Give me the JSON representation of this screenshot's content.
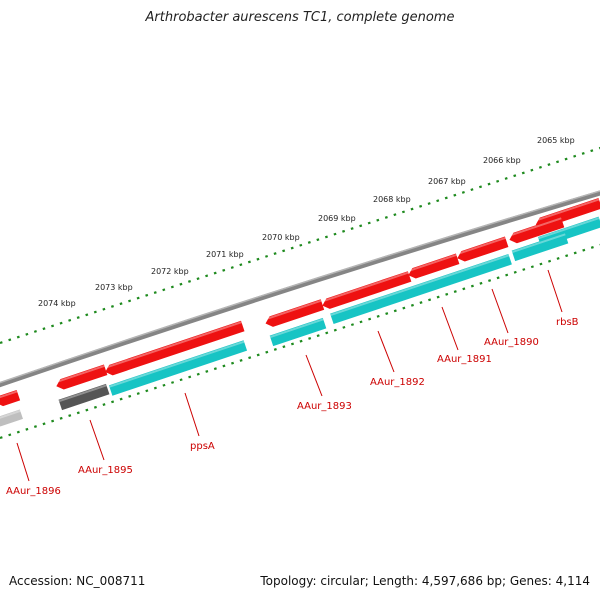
{
  "title": "Arthrobacter aurescens TC1, complete genome",
  "accession": "Accession: NC_008711",
  "summary": "Topology: circular; Length: 4,597,686 bp; Genes: 4,114",
  "colors": {
    "backbone": "#858585",
    "ruler_green": "#1e8a1e",
    "gene_red": "#ee1111",
    "cds_cyan": "#17c4c4",
    "gene_dark": "#555555",
    "cds_light": "#bfbfbf",
    "label_red": "#cc0000"
  },
  "map": {
    "scale_labels": [
      "2065 kbp",
      "2066 kbp",
      "2067 kbp",
      "2068 kbp",
      "2069 kbp",
      "2070 kbp",
      "2071 kbp",
      "2072 kbp",
      "2073 kbp",
      "2074 kbp"
    ],
    "features": [
      {
        "name": "rbsB",
        "strand": "reverse",
        "style": "red"
      },
      {
        "name": "AAur_1890",
        "strand": "reverse",
        "style": "red"
      },
      {
        "name": "AAur_1891",
        "strand": "reverse",
        "style": "red"
      },
      {
        "name": "AAur_1892",
        "strand": "reverse",
        "style": "red"
      },
      {
        "name": "AAur_1893",
        "strand": "reverse",
        "style": "red"
      },
      {
        "name": "ppsA",
        "strand": "reverse",
        "style": "red"
      },
      {
        "name": "AAur_1895",
        "strand": "reverse",
        "style": "dark"
      },
      {
        "name": "AAur_1896",
        "strand": "reverse",
        "style": "red"
      }
    ]
  }
}
